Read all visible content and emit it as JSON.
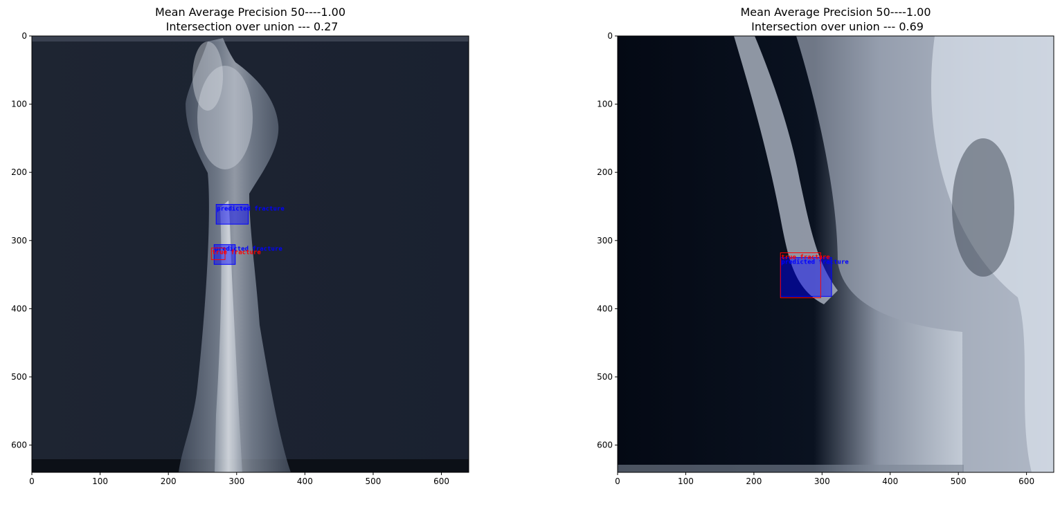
{
  "colors": {
    "predicted": "#0000ff",
    "true": "#ff0000"
  },
  "chart_data": [
    {
      "type": "image",
      "title_line1": "Mean Average Precision 50----1.00",
      "title_line2": " Intersection over union --- 0.27",
      "xlim": [
        0,
        640
      ],
      "ylim": [
        640,
        0
      ],
      "x_ticks": [
        0,
        100,
        200,
        300,
        400,
        500,
        600
      ],
      "y_ticks": [
        0,
        100,
        200,
        300,
        400,
        500,
        600
      ],
      "boxes": [
        {
          "kind": "predicted",
          "label": "predicted fracture",
          "x1": 270,
          "y1": 247,
          "x2": 317,
          "y2": 276
        },
        {
          "kind": "predicted",
          "label": "predicted fracture",
          "x1": 267,
          "y1": 306,
          "x2": 298,
          "y2": 335
        },
        {
          "kind": "true",
          "label": "true fracture",
          "x1": 263,
          "y1": 311,
          "x2": 283,
          "y2": 328
        }
      ]
    },
    {
      "type": "image",
      "title_line1": "Mean Average Precision 50----1.00",
      "title_line2": " Intersection over union --- 0.69",
      "xlim": [
        0,
        640
      ],
      "ylim": [
        640,
        0
      ],
      "x_ticks": [
        0,
        100,
        200,
        300,
        400,
        500,
        600
      ],
      "y_ticks": [
        0,
        100,
        200,
        300,
        400,
        500,
        600
      ],
      "boxes": [
        {
          "kind": "predicted",
          "label": "predicted fracture",
          "x1": 239,
          "y1": 325,
          "x2": 314,
          "y2": 382
        },
        {
          "kind": "true",
          "label": "true fracture",
          "x1": 239,
          "y1": 318,
          "x2": 298,
          "y2": 384
        }
      ]
    }
  ]
}
